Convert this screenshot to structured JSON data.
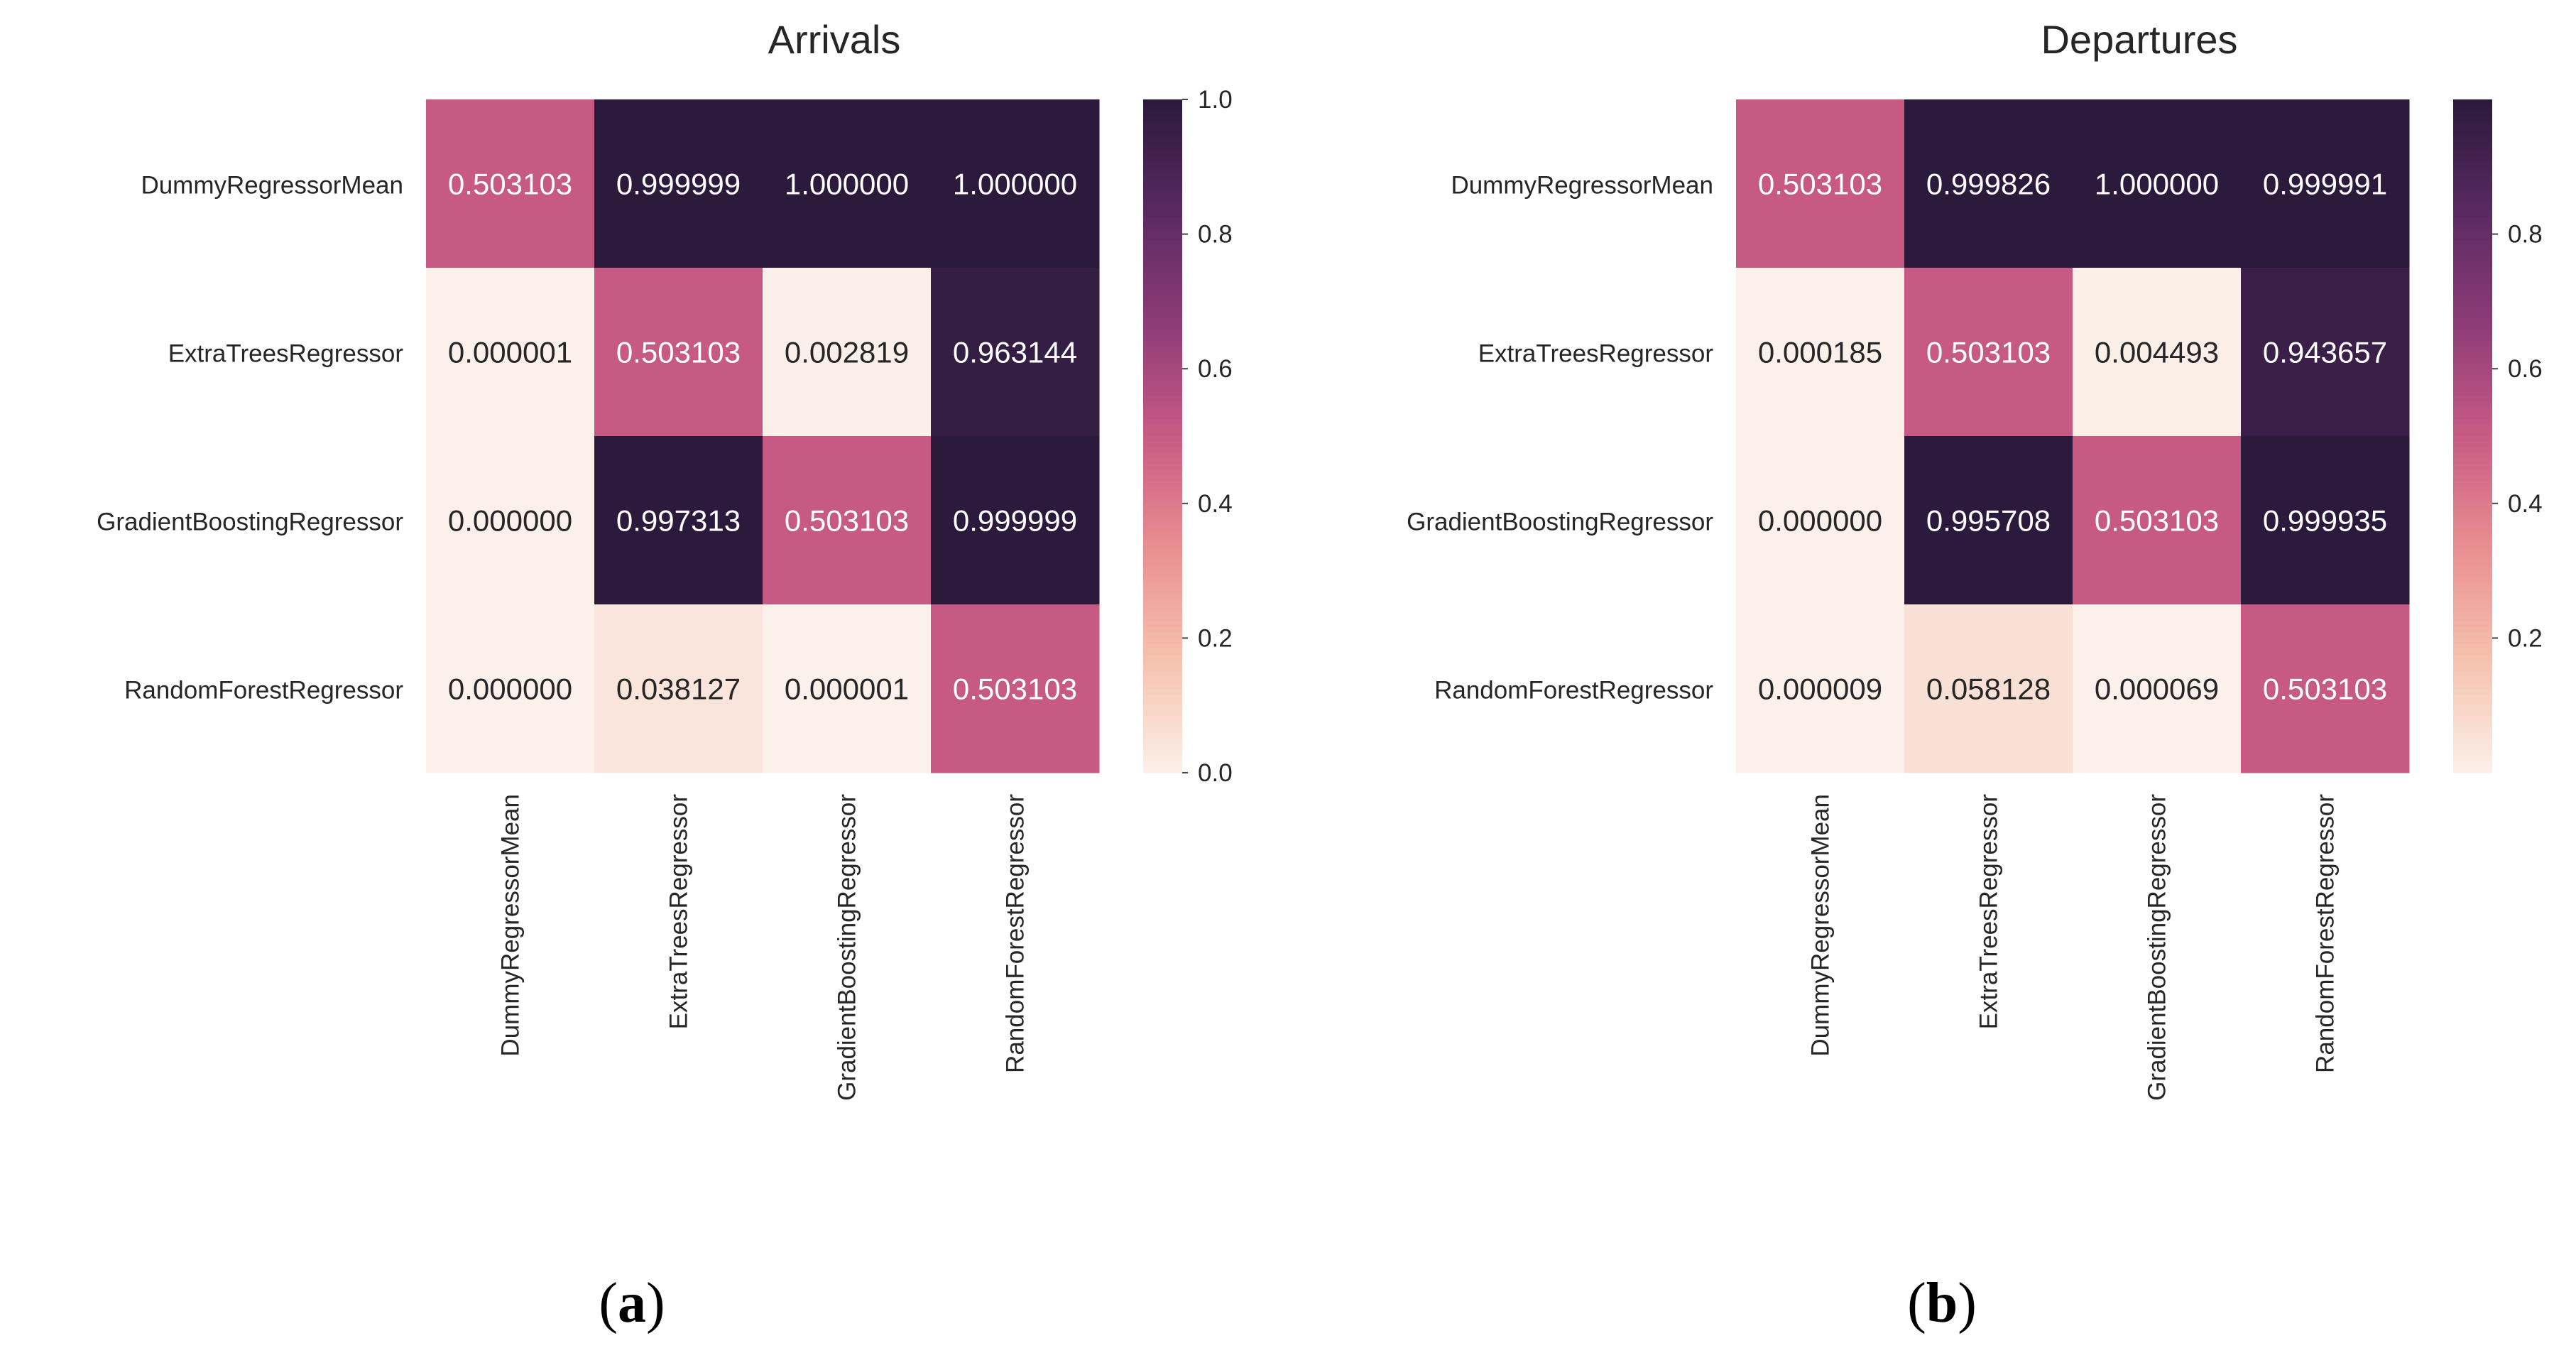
{
  "chart_data": [
    {
      "type": "heatmap",
      "title": "Arrivals",
      "panel_label": "a",
      "rows": [
        "DummyRegressorMean",
        "ExtraTreesRegressor",
        "GradientBoostingRegressor",
        "RandomForestRegressor"
      ],
      "columns": [
        "DummyRegressorMean",
        "ExtraTreesRegressor",
        "GradientBoostingRegressor",
        "RandomForestRegressor"
      ],
      "values": [
        [
          0.503103,
          0.999999,
          1.0,
          1.0
        ],
        [
          1e-06,
          0.503103,
          0.002819,
          0.963144
        ],
        [
          0.0,
          0.997313,
          0.503103,
          0.999999
        ],
        [
          0.0,
          0.038127,
          1e-06,
          0.503103
        ]
      ],
      "cell_labels": [
        [
          "0.503103",
          "0.999999",
          "1.000000",
          "1.000000"
        ],
        [
          "0.000001",
          "0.503103",
          "0.002819",
          "0.963144"
        ],
        [
          "0.000000",
          "0.997313",
          "0.503103",
          "0.999999"
        ],
        [
          "0.000000",
          "0.038127",
          "0.000001",
          "0.503103"
        ]
      ],
      "colorbar": {
        "range": [
          0.0,
          1.0
        ],
        "ticks": [
          0.0,
          0.2,
          0.4,
          0.6,
          0.8,
          1.0
        ],
        "tick_labels": [
          "0.0",
          "0.2",
          "0.4",
          "0.6",
          "0.8",
          "1.0"
        ]
      }
    },
    {
      "type": "heatmap",
      "title": "Departures",
      "panel_label": "b",
      "rows": [
        "DummyRegressorMean",
        "ExtraTreesRegressor",
        "GradientBoostingRegressor",
        "RandomForestRegressor"
      ],
      "columns": [
        "DummyRegressorMean",
        "ExtraTreesRegressor",
        "GradientBoostingRegressor",
        "RandomForestRegressor"
      ],
      "values": [
        [
          0.503103,
          0.999826,
          1.0,
          0.999991
        ],
        [
          0.000185,
          0.503103,
          0.004493,
          0.943657
        ],
        [
          0.0,
          0.995708,
          0.503103,
          0.999935
        ],
        [
          9e-06,
          0.058128,
          6.9e-05,
          0.503103
        ]
      ],
      "cell_labels": [
        [
          "0.503103",
          "0.999826",
          "1.000000",
          "0.999991"
        ],
        [
          "0.000185",
          "0.503103",
          "0.004493",
          "0.943657"
        ],
        [
          "0.000000",
          "0.995708",
          "0.503103",
          "0.999935"
        ],
        [
          "0.000009",
          "0.058128",
          "0.000069",
          "0.503103"
        ]
      ],
      "colorbar": {
        "range": [
          0.0,
          1.0
        ],
        "ticks": [
          0.2,
          0.4,
          0.6,
          0.8
        ],
        "tick_labels": [
          "0.2",
          "0.4",
          "0.6",
          "0.8"
        ]
      }
    }
  ],
  "colors": {
    "colormap": [
      "#fbf0ea",
      "#f6c2ad",
      "#e98f92",
      "#c85b83",
      "#8d3b78",
      "#5a2a62",
      "#2b1a3c"
    ],
    "text_dark": "#262626",
    "text_light": "#ffffff"
  }
}
